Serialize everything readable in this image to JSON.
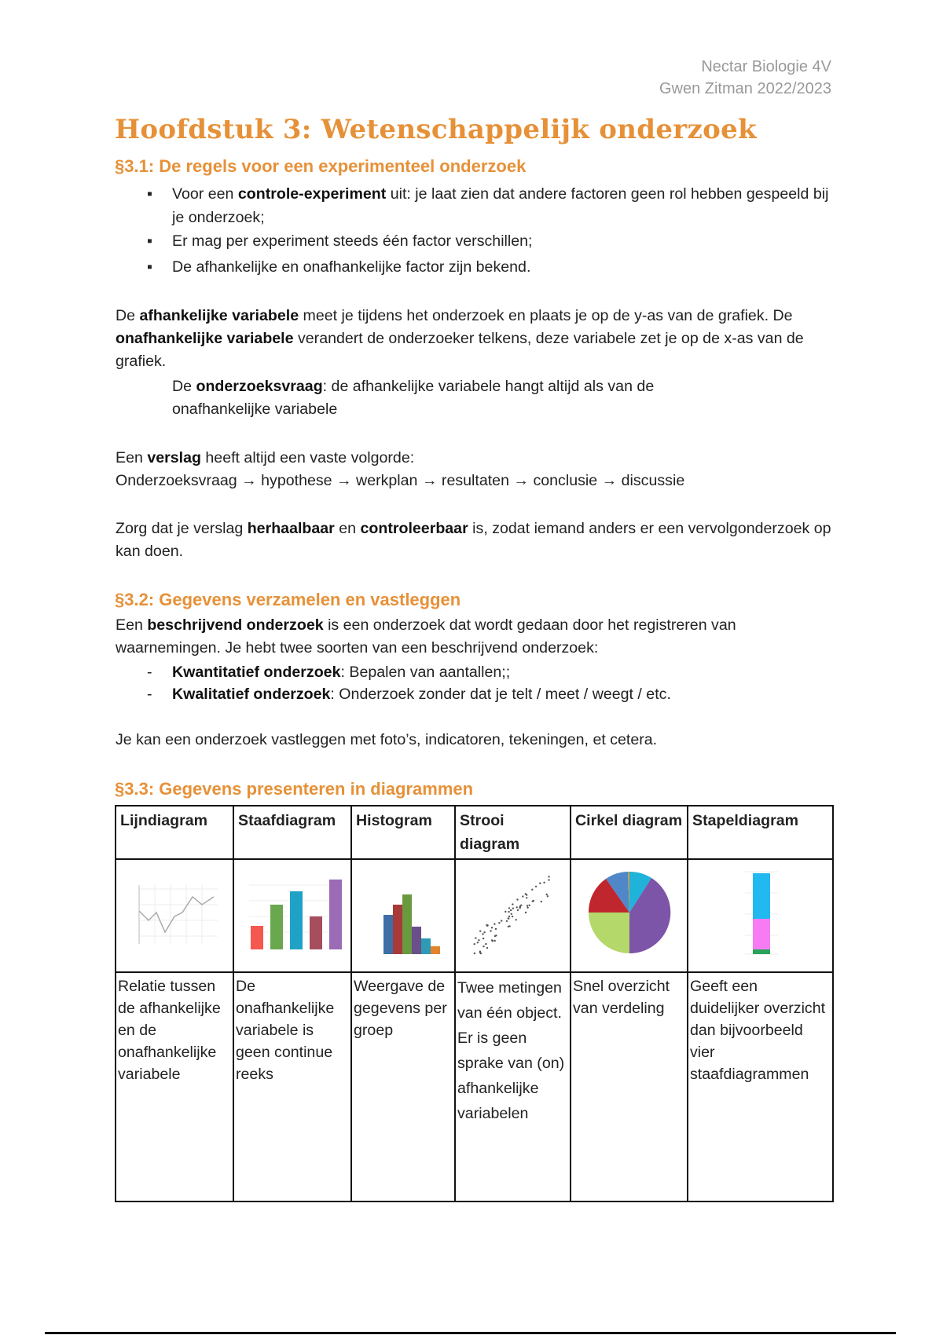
{
  "header": {
    "line1": "Nectar Biologie 4V",
    "line2": "Gwen Zitman 2022/2023"
  },
  "title": "Hoofdstuk 3: Wetenschappelijk onderzoek",
  "s31": {
    "heading": "§3.1: De regels voor een experimenteel onderzoek",
    "bullets": [
      {
        "pre": "Voor een ",
        "bold": "controle-experiment",
        "post": " uit: je laat zien dat andere factoren geen rol hebben gespeeld bij je onderzoek;"
      },
      {
        "pre": "Er mag per experiment steeds één factor verschillen;"
      },
      {
        "pre": "De afhankelijke en onafhankelijke factor zijn bekend."
      }
    ],
    "p1": {
      "a": "De ",
      "b1": "afhankelijke variabele",
      "c": " meet je tijdens het onderzoek en plaats je op de y-as van de grafiek. De ",
      "b2": "onafhankelijke variabele",
      "d": " verandert de onderzoeker telkens, deze variabele zet je op de x-as van de grafiek."
    },
    "p2": {
      "a": "De ",
      "b": "onderzoeksvraag",
      "c": ": de afhankelijke variabele hangt altijd als van de onafhankelijke variabele"
    },
    "p3": {
      "a": "Een ",
      "b": "verslag",
      "c": " heeft altijd een vaste volgorde:",
      "line2": "Onderzoeksvraag → hypothese → werkplan → resultaten → conclusie → discussie"
    },
    "p4": {
      "a": "Zorg dat je verslag ",
      "b1": "herhaalbaar",
      "c": " en ",
      "b2": "controleerbaar",
      "d": " is, zodat iemand anders er een vervolgonderzoek op kan doen."
    }
  },
  "s32": {
    "heading": "§3.2: Gegevens verzamelen en vastleggen",
    "p1": {
      "a": "Een ",
      "b": "beschrijvend onderzoek",
      "c": " is een onderzoek dat wordt gedaan door het registreren van waarnemingen. Je hebt twee soorten van een beschrijvend onderzoek:"
    },
    "bullets": [
      {
        "bold": "Kwantitatief onderzoek",
        "post": ": Bepalen van aantallen;;"
      },
      {
        "bold": "Kwalitatief onderzoek",
        "post": ": Onderzoek zonder dat je telt / meet / weegt / etc."
      }
    ],
    "p2": "Je kan een onderzoek vastleggen met foto’s, indicatoren, tekeningen, et cetera."
  },
  "s33": {
    "heading": "§3.3: Gegevens presenteren in diagrammen",
    "columns": [
      "Lijndiagram",
      "Staafdiagram",
      "Histogram",
      "Strooi diagram",
      "Cirkel diagram",
      "Stapeldiagram"
    ],
    "descriptions": [
      "Relatie tussen de afhankelijke en de onafhankelijke variabele",
      "De onafhankelijke variabele is geen continue reeks",
      "Weergave de gegevens per groep",
      "Twee metingen van één object. Er is geen sprake van (on) afhankelijke variabelen",
      "Snel overzicht van verdeling",
      "Geeft een duidelijker overzicht dan bijvoorbeeld vier staafdiagrammen"
    ],
    "icons": [
      "line-chart-thumbnail",
      "bar-chart-thumbnail",
      "histogram-thumbnail",
      "scatter-plot-thumbnail",
      "pie-chart-thumbnail",
      "stacked-bar-thumbnail"
    ]
  },
  "colors": {
    "accent": "#e69138",
    "text": "#222222",
    "muted": "#999999"
  }
}
